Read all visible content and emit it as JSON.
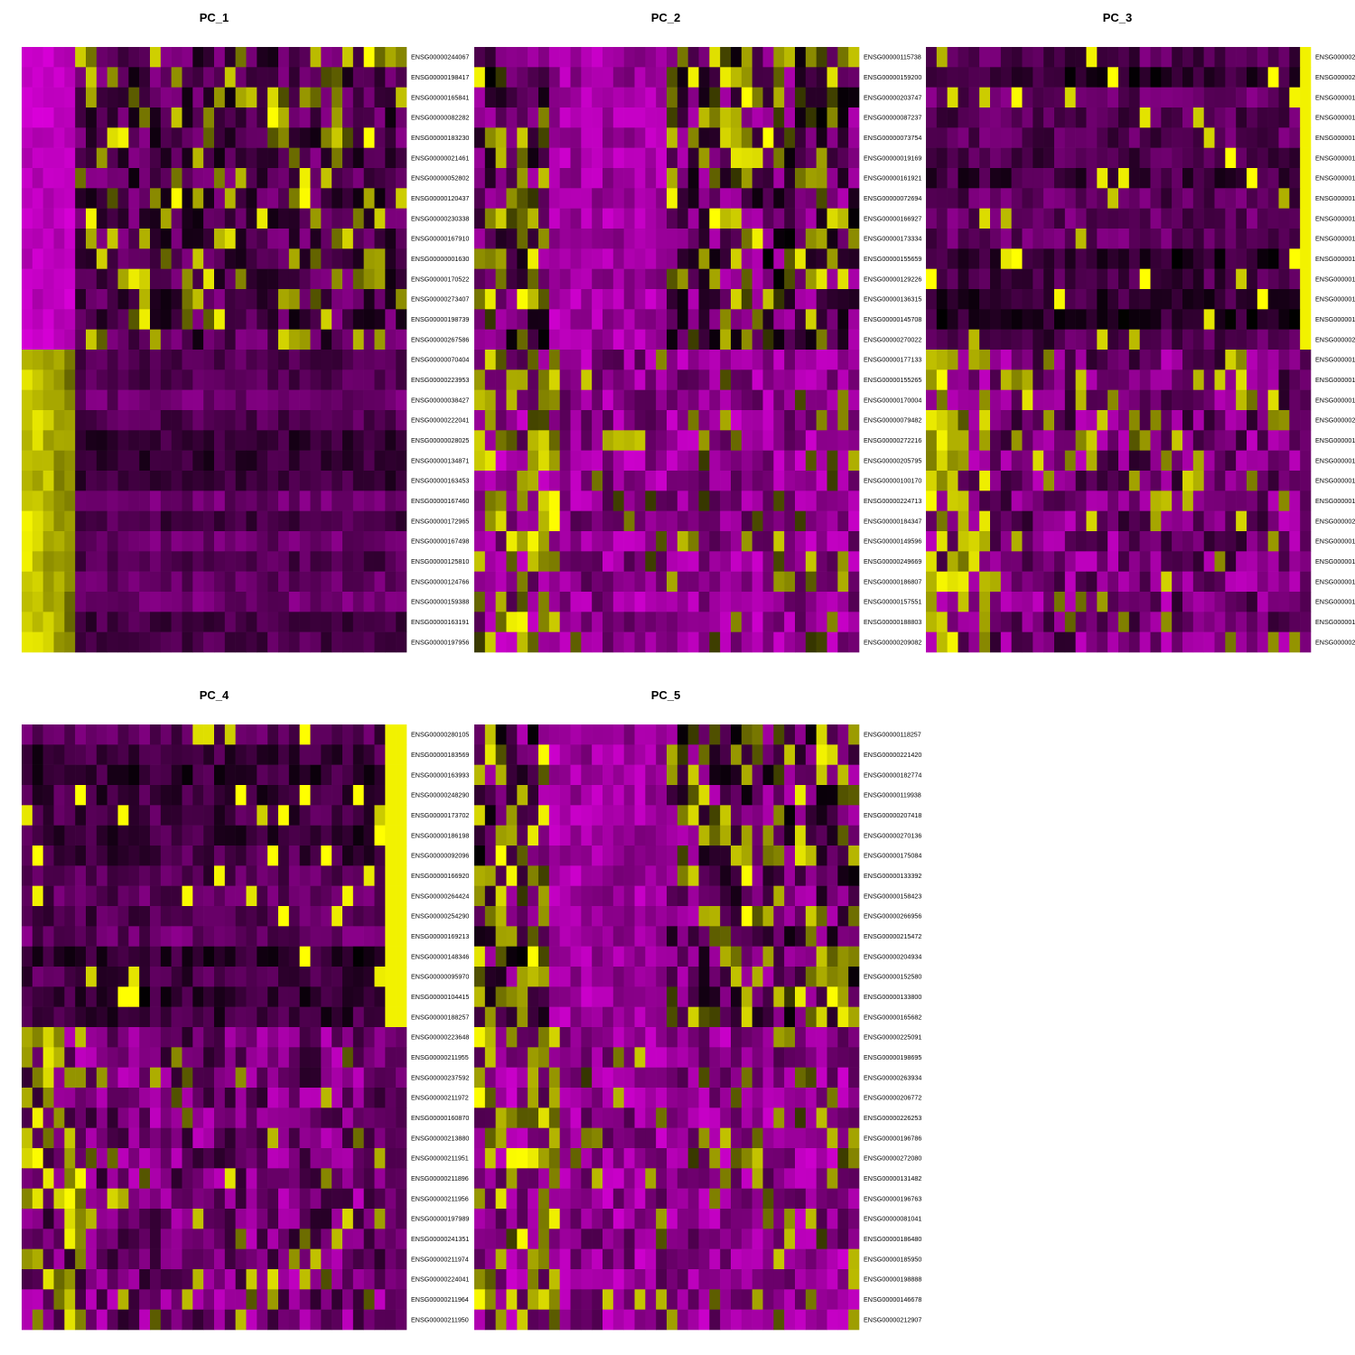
{
  "chart_data": [
    {
      "type": "heatmap",
      "title": "PC_1",
      "n_cols": 36,
      "split_row": 15,
      "pattern": "left_cols",
      "n_block_cols": 5,
      "seed": 11,
      "genes": [
        "ENSG00000244067",
        "ENSG00000198417",
        "ENSG00000165841",
        "ENSG00000082282",
        "ENSG00000183230",
        "ENSG00000021461",
        "ENSG00000052802",
        "ENSG00000120437",
        "ENSG00000230338",
        "ENSG00000167910",
        "ENSG00000001630",
        "ENSG00000170522",
        "ENSG00000273407",
        "ENSG00000198739",
        "ENSG00000267586",
        "ENSG00000070404",
        "ENSG00000223953",
        "ENSG00000038427",
        "ENSG00000222041",
        "ENSG00000028025",
        "ENSG00000134871",
        "ENSG00000163453",
        "ENSG00000167460",
        "ENSG00000172965",
        "ENSG00000167498",
        "ENSG00000125810",
        "ENSG00000124766",
        "ENSG00000159388",
        "ENSG00000163191",
        "ENSG00000197956"
      ]
    },
    {
      "type": "heatmap",
      "title": "PC_2",
      "n_cols": 36,
      "split_row": 15,
      "pattern": "mixed",
      "n_block_cols": 0,
      "seed": 23,
      "genes": [
        "ENSG00000115738",
        "ENSG00000159200",
        "ENSG00000203747",
        "ENSG00000087237",
        "ENSG00000073754",
        "ENSG00000019169",
        "ENSG00000161921",
        "ENSG00000072694",
        "ENSG00000166927",
        "ENSG00000173334",
        "ENSG00000155659",
        "ENSG00000129226",
        "ENSG00000136315",
        "ENSG00000145708",
        "ENSG00000270022",
        "ENSG00000177133",
        "ENSG00000155265",
        "ENSG00000170004",
        "ENSG00000079482",
        "ENSG00000272216",
        "ENSG00000205795",
        "ENSG00000100170",
        "ENSG00000224713",
        "ENSG00000184347",
        "ENSG00000149596",
        "ENSG00000249669",
        "ENSG00000186807",
        "ENSG00000157551",
        "ENSG00000188803",
        "ENSG00000209082"
      ]
    },
    {
      "type": "heatmap",
      "title": "PC_3",
      "n_cols": 36,
      "split_row": 15,
      "pattern": "right_col",
      "n_block_cols": 1,
      "seed": 37,
      "genes": [
        "ENSG000002",
        "ENSG000002",
        "ENSG000001",
        "ENSG000001",
        "ENSG000001",
        "ENSG000001",
        "ENSG000001",
        "ENSG000001",
        "ENSG000001",
        "ENSG000001",
        "ENSG000001",
        "ENSG000001",
        "ENSG000001",
        "ENSG000001",
        "ENSG000002",
        "ENSG000001",
        "ENSG000001",
        "ENSG000001",
        "ENSG000002",
        "ENSG000001",
        "ENSG000001",
        "ENSG000001",
        "ENSG000001",
        "ENSG000002",
        "ENSG000001",
        "ENSG000001",
        "ENSG000001",
        "ENSG000001",
        "ENSG000001",
        "ENSG000002"
      ]
    },
    {
      "type": "heatmap",
      "title": "PC_4",
      "n_cols": 36,
      "split_row": 15,
      "pattern": "right_col",
      "n_block_cols": 2,
      "seed": 53,
      "genes": [
        "ENSG00000280105",
        "ENSG00000183569",
        "ENSG00000163993",
        "ENSG00000248290",
        "ENSG00000173702",
        "ENSG00000186198",
        "ENSG00000092096",
        "ENSG00000166920",
        "ENSG00000264424",
        "ENSG00000254290",
        "ENSG00000169213",
        "ENSG00000148346",
        "ENSG00000095970",
        "ENSG00000104415",
        "ENSG00000188257",
        "ENSG00000223648",
        "ENSG00000211955",
        "ENSG00000237592",
        "ENSG00000211972",
        "ENSG00000160870",
        "ENSG00000213880",
        "ENSG00000211951",
        "ENSG00000211896",
        "ENSG00000211956",
        "ENSG00000197989",
        "ENSG00000241351",
        "ENSG00000211974",
        "ENSG00000224041",
        "ENSG00000211964",
        "ENSG00000211950"
      ]
    },
    {
      "type": "heatmap",
      "title": "PC_5",
      "n_cols": 36,
      "split_row": 15,
      "pattern": "mixed",
      "n_block_cols": 0,
      "seed": 71,
      "genes": [
        "ENSG00000118257",
        "ENSG00000221420",
        "ENSG00000182774",
        "ENSG00000119938",
        "ENSG00000207418",
        "ENSG00000270136",
        "ENSG00000175084",
        "ENSG00000133392",
        "ENSG00000158423",
        "ENSG00000266956",
        "ENSG00000215472",
        "ENSG00000204934",
        "ENSG00000152580",
        "ENSG00000133800",
        "ENSG00000165682",
        "ENSG00000225091",
        "ENSG00000198695",
        "ENSG00000263934",
        "ENSG00000206772",
        "ENSG00000226253",
        "ENSG00000196786",
        "ENSG00000272080",
        "ENSG00000131482",
        "ENSG00000196763",
        "ENSG00000081041",
        "ENSG00000186480",
        "ENSG00000185950",
        "ENSG00000198888",
        "ENSG00000146678",
        "ENSG00000212907"
      ]
    }
  ]
}
